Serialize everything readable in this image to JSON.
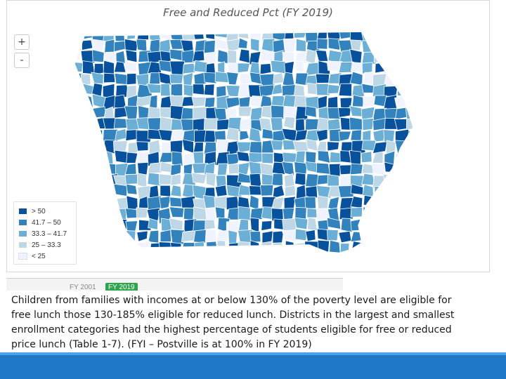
{
  "map": {
    "title": "Free and Reduced Pct (FY 2019)",
    "zoom_in": "+",
    "zoom_out": "-",
    "legend": [
      {
        "label": "> 50",
        "color": "#08519c"
      },
      {
        "label": "41.7 – 50",
        "color": "#3182bd"
      },
      {
        "label": "33.3 – 41.7",
        "color": "#6baed6"
      },
      {
        "label": "25 – 33.3",
        "color": "#bdd7e7"
      },
      {
        "label": "< 25",
        "color": "#eff3ff"
      }
    ],
    "tabs": [
      {
        "label": "FY 2001",
        "selected": false
      },
      {
        "label": "FY 2019",
        "selected": true
      }
    ]
  },
  "caption": "Children from families with incomes at or below 130% of the poverty level are eligible for free lunch those 130-185% eligible for reduced lunch. Districts in the largest and smallest enrollment categories had the highest percentage of students eligible for free or reduced price lunch (Table 1-7). (FYI – Postville is at 100% in FY 2019)",
  "colors": {
    "footer": "#1f78c8",
    "state_border": "#ffffff"
  }
}
